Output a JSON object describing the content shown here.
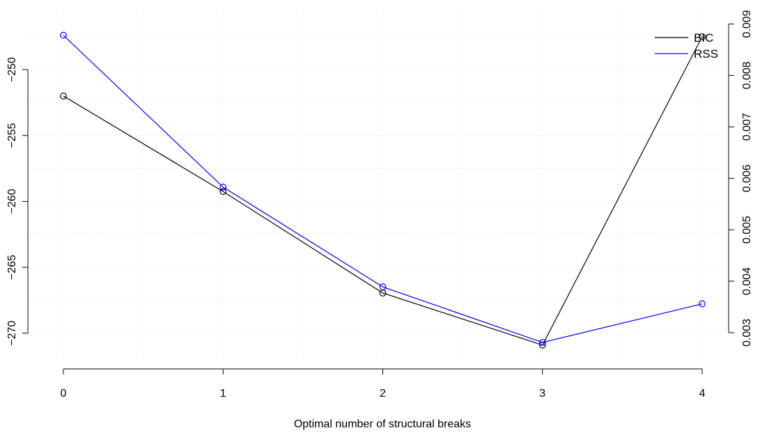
{
  "chart_data": {
    "type": "line",
    "xlabel": "Optimal number of structural breaks",
    "x": [
      0,
      1,
      2,
      3,
      4
    ],
    "x_ticks": [
      "0",
      "1",
      "2",
      "3",
      "4"
    ],
    "xlim": [
      0,
      4
    ],
    "left_axis": {
      "ylim": [
        -270.7,
        -246.3
      ],
      "ticks": [
        -250,
        -255,
        -260,
        -265,
        -270
      ],
      "tick_labels": [
        "−250",
        "−255",
        "−260",
        "−265",
        "−270"
      ]
    },
    "right_axis": {
      "ylim": [
        0.00281,
        0.00906
      ],
      "ticks": [
        0.003,
        0.004,
        0.005,
        0.006,
        0.007,
        0.008,
        0.009
      ],
      "tick_labels": [
        "0.003",
        "0.004",
        "0.005",
        "0.006",
        "0.007",
        "0.008",
        "0.009"
      ]
    },
    "grid": true,
    "legend_position": "top-right",
    "series": [
      {
        "name": "BIC",
        "axis": "left",
        "color": "#000000",
        "values": [
          -252.0,
          -259.25,
          -266.95,
          -270.9,
          -247.5
        ]
      },
      {
        "name": "RSS",
        "axis": "right",
        "color": "#0000ff",
        "values": [
          0.00878,
          0.00583,
          0.00389,
          0.00281,
          0.00356
        ]
      }
    ]
  }
}
